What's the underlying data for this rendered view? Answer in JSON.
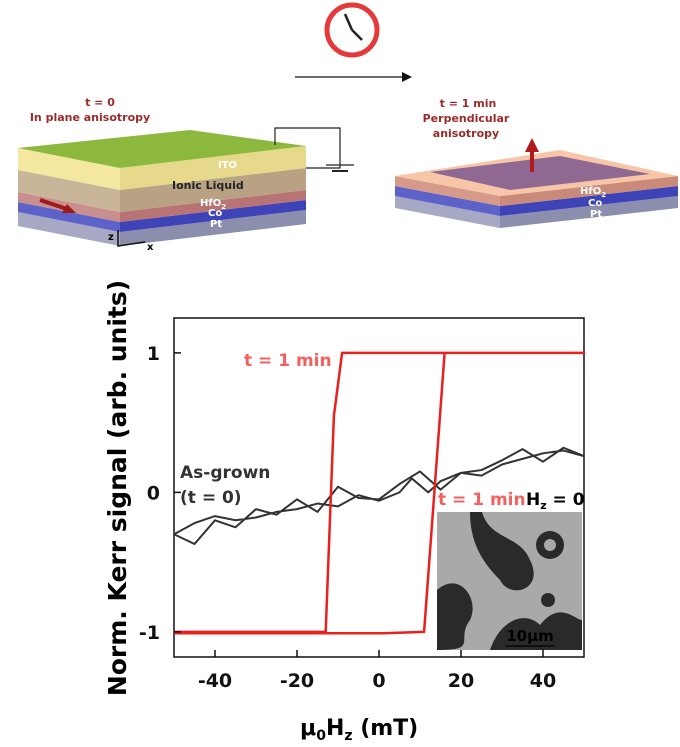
{
  "diagram": {
    "left": {
      "time": "t = 0",
      "state": "In plane anisotropy",
      "layers": [
        "ITO",
        "Ionic Liquid",
        "HfO",
        "2",
        "Co",
        "Pt"
      ],
      "axes": [
        "z",
        "x"
      ]
    },
    "right": {
      "time": "t = 1 min",
      "state": [
        "Perpendicular",
        "anisotropy"
      ],
      "layers": [
        "HfO",
        "2",
        "Co",
        "Pt"
      ]
    }
  },
  "chart_data": {
    "type": "line",
    "ylabel": "Norm. Kerr signal (arb. units)",
    "xlabel": [
      "μ",
      "0",
      "H",
      "z",
      " (mT)"
    ],
    "xlim": [
      -50,
      50
    ],
    "xticks": [
      -40,
      -20,
      0,
      20,
      40
    ],
    "ylim": [
      -1.18,
      1.25
    ],
    "yticks": [
      -1,
      0,
      1
    ],
    "series": [
      {
        "color": "#333333",
        "x": [
          -50,
          -45,
          -40,
          -35,
          -30,
          -25,
          -20,
          -15,
          -10,
          -5,
          0,
          5,
          10,
          15,
          20,
          25,
          30,
          35,
          40,
          45,
          50,
          null,
          50,
          45,
          40,
          35,
          30,
          25,
          20,
          15,
          12,
          8,
          5,
          0,
          -5,
          -10,
          -15,
          -20,
          -25,
          -30,
          -35,
          -40,
          -45,
          -50
        ],
        "values": [
          -0.3,
          -0.37,
          -0.2,
          -0.25,
          -0.12,
          -0.16,
          -0.05,
          -0.14,
          0.04,
          -0.04,
          -0.05,
          0.06,
          0.15,
          0.02,
          0.14,
          0.16,
          0.23,
          0.31,
          0.22,
          0.32,
          0.26,
          null,
          0.26,
          0.3,
          0.28,
          0.24,
          0.2,
          0.12,
          0.14,
          0.08,
          0.0,
          0.1,
          0.0,
          -0.06,
          -0.02,
          -0.1,
          -0.08,
          -0.12,
          -0.14,
          -0.18,
          -0.2,
          -0.17,
          -0.22,
          -0.3
        ]
      },
      {
        "color": "#e8201e",
        "x": [
          -50,
          -13,
          -11,
          -9,
          50,
          16,
          11,
          1,
          -50
        ],
        "values": [
          -1,
          -1,
          0.55,
          1,
          1,
          1,
          -1,
          -1.01,
          -1.01
        ]
      }
    ],
    "annotations": [
      {
        "text": "t = 1 min",
        "color": "#f26060"
      },
      {
        "text": "As-grown",
        "color": "#333333"
      },
      {
        "text": "(t = 0)",
        "color": "#333333"
      }
    ],
    "inset": {
      "time": "t = 1 min",
      "field": [
        "H",
        "z",
        " = 0"
      ],
      "scale": "10μm"
    }
  }
}
